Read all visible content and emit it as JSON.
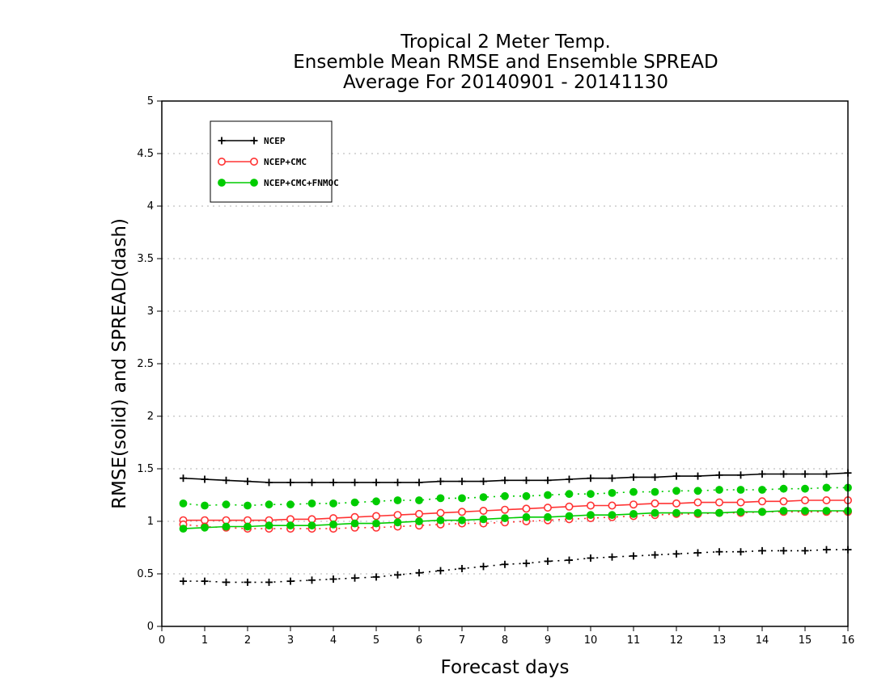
{
  "chart_data": {
    "type": "line",
    "title": [
      "Tropical 2 Meter Temp.",
      "Ensemble Mean RMSE and Ensemble SPREAD",
      "Average For 20140901 - 20141130"
    ],
    "xlabel": "Forecast days",
    "ylabel": "RMSE(solid) and SPREAD(dash)",
    "xlim": [
      0,
      16
    ],
    "ylim": [
      0,
      5
    ],
    "xticks": [
      "0",
      "1",
      "2",
      "3",
      "4",
      "5",
      "6",
      "7",
      "8",
      "9",
      "10",
      "11",
      "12",
      "13",
      "14",
      "15",
      "16"
    ],
    "yticks": [
      "0",
      "0.5",
      "1",
      "1.5",
      "2",
      "2.5",
      "3",
      "3.5",
      "4",
      "4.5",
      "5"
    ],
    "grid": true,
    "legend_position": "top-left",
    "x": [
      0.5,
      1.0,
      1.5,
      2.0,
      2.5,
      3.0,
      3.5,
      4.0,
      4.5,
      5.0,
      5.5,
      6.0,
      6.5,
      7.0,
      7.5,
      8.0,
      8.5,
      9.0,
      9.5,
      10.0,
      10.5,
      11.0,
      11.5,
      12.0,
      12.5,
      13.0,
      13.5,
      14.0,
      14.5,
      15.0,
      15.5,
      16.0
    ],
    "series": [
      {
        "name": "NCEP",
        "metric": "RMSE",
        "line": "solid",
        "marker": "plus",
        "color": "#000000",
        "values": [
          1.41,
          1.4,
          1.39,
          1.38,
          1.37,
          1.37,
          1.37,
          1.37,
          1.37,
          1.37,
          1.37,
          1.37,
          1.38,
          1.38,
          1.38,
          1.39,
          1.39,
          1.39,
          1.4,
          1.41,
          1.41,
          1.42,
          1.42,
          1.43,
          1.43,
          1.44,
          1.44,
          1.45,
          1.45,
          1.45,
          1.45,
          1.46
        ]
      },
      {
        "name": "NCEP",
        "metric": "SPREAD",
        "line": "dash",
        "marker": "plus",
        "color": "#000000",
        "values": [
          0.43,
          0.43,
          0.42,
          0.42,
          0.42,
          0.43,
          0.44,
          0.45,
          0.46,
          0.47,
          0.49,
          0.51,
          0.53,
          0.55,
          0.57,
          0.59,
          0.6,
          0.62,
          0.63,
          0.65,
          0.66,
          0.67,
          0.68,
          0.69,
          0.7,
          0.71,
          0.71,
          0.72,
          0.72,
          0.72,
          0.73,
          0.73
        ]
      },
      {
        "name": "NCEP+CMC",
        "metric": "RMSE",
        "line": "solid",
        "marker": "open-circle",
        "color": "#ff3333",
        "values": [
          1.01,
          1.01,
          1.01,
          1.01,
          1.01,
          1.02,
          1.02,
          1.03,
          1.04,
          1.05,
          1.06,
          1.07,
          1.08,
          1.09,
          1.1,
          1.11,
          1.12,
          1.13,
          1.14,
          1.15,
          1.15,
          1.16,
          1.17,
          1.17,
          1.18,
          1.18,
          1.18,
          1.19,
          1.19,
          1.2,
          1.2,
          1.2
        ]
      },
      {
        "name": "NCEP+CMC",
        "metric": "SPREAD",
        "line": "dash",
        "marker": "open-circle",
        "color": "#ff3333",
        "values": [
          0.97,
          0.95,
          0.94,
          0.93,
          0.93,
          0.93,
          0.93,
          0.93,
          0.94,
          0.94,
          0.95,
          0.96,
          0.97,
          0.98,
          0.98,
          0.99,
          1.0,
          1.01,
          1.02,
          1.03,
          1.04,
          1.05,
          1.06,
          1.07,
          1.07,
          1.08,
          1.08,
          1.09,
          1.09,
          1.09,
          1.09,
          1.09
        ]
      },
      {
        "name": "NCEP+CMC+FNMOC",
        "metric": "RMSE",
        "line": "solid",
        "marker": "filled-circle",
        "color": "#00cc00",
        "values": [
          0.93,
          0.94,
          0.95,
          0.95,
          0.96,
          0.96,
          0.96,
          0.97,
          0.98,
          0.98,
          0.99,
          1.0,
          1.01,
          1.01,
          1.02,
          1.03,
          1.04,
          1.04,
          1.05,
          1.06,
          1.06,
          1.07,
          1.08,
          1.08,
          1.08,
          1.08,
          1.09,
          1.09,
          1.1,
          1.1,
          1.1,
          1.1
        ]
      },
      {
        "name": "NCEP+CMC+FNMOC",
        "metric": "SPREAD",
        "line": "dash",
        "marker": "filled-circle",
        "color": "#00cc00",
        "values": [
          1.17,
          1.15,
          1.16,
          1.15,
          1.16,
          1.16,
          1.17,
          1.17,
          1.18,
          1.19,
          1.2,
          1.2,
          1.22,
          1.22,
          1.23,
          1.24,
          1.24,
          1.25,
          1.26,
          1.26,
          1.27,
          1.28,
          1.28,
          1.29,
          1.29,
          1.3,
          1.3,
          1.3,
          1.31,
          1.31,
          1.32,
          1.32
        ]
      }
    ],
    "legend": [
      {
        "label": "NCEP",
        "color": "#000000",
        "marker": "plus"
      },
      {
        "label": "NCEP+CMC",
        "color": "#ff3333",
        "marker": "open-circle"
      },
      {
        "label": "NCEP+CMC+FNMOC",
        "color": "#00cc00",
        "marker": "filled-circle"
      }
    ]
  }
}
